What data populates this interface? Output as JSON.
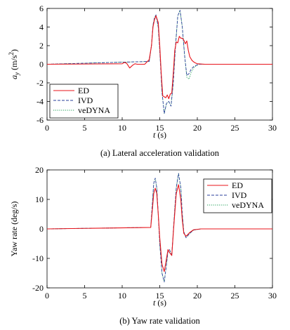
{
  "chart_data": [
    {
      "type": "line",
      "caption": "(a) Lateral acceleration validation",
      "xlabel": "t (s)",
      "ylabel": "a_y (m/s^2)",
      "xlim": [
        0,
        30
      ],
      "ylim": [
        -6,
        6
      ],
      "xticks": [
        0,
        5,
        10,
        15,
        20,
        25,
        30
      ],
      "yticks": [
        -6,
        -4,
        -2,
        0,
        2,
        4,
        6
      ],
      "grid": false,
      "legend_position": "bottom-left",
      "series": [
        {
          "name": "ED",
          "color": "#e8141b",
          "style": "solid",
          "x": [
            0,
            10,
            10.3,
            10.6,
            11,
            11.4,
            11.7,
            12,
            13,
            13.6,
            13.9,
            14.1,
            14.3,
            14.5,
            14.8,
            15.0,
            15.2,
            15.4,
            15.6,
            15.8,
            16.0,
            16.2,
            16.4,
            16.6,
            16.8,
            17.0,
            17.2,
            17.4,
            17.6,
            17.8,
            18.0,
            18.2,
            18.4,
            18.6,
            18.8,
            19.0,
            19.3,
            19.6,
            20,
            21,
            30
          ],
          "y": [
            0,
            0.05,
            0.2,
            0.1,
            -0.4,
            -0.1,
            0.05,
            0,
            0,
            0.5,
            2.0,
            4.0,
            4.8,
            5.2,
            4.5,
            2.0,
            -1.0,
            -3.4,
            -3.5,
            -3.6,
            -3.3,
            -3.7,
            -3.2,
            -3.1,
            -1.0,
            1.5,
            2.4,
            2.3,
            3.0,
            2.8,
            2.8,
            2.6,
            2.2,
            2.5,
            1.5,
            0.8,
            0.4,
            0.2,
            0.05,
            0,
            0
          ]
        },
        {
          "name": "IVD",
          "color": "#2a3f9b",
          "style": "dashed",
          "x": [
            0,
            13.6,
            13.9,
            14.1,
            14.3,
            14.5,
            14.8,
            15.0,
            15.3,
            15.6,
            15.9,
            16.2,
            16.5,
            16.8,
            17.1,
            17.4,
            17.7,
            18.0,
            18.3,
            18.6,
            18.9,
            19.2,
            19.6,
            20.2,
            21,
            30
          ],
          "y": [
            0,
            0.3,
            2.0,
            4.2,
            5.0,
            5.3,
            4.0,
            1.5,
            -3.0,
            -5.3,
            -4.2,
            -4.0,
            -4.5,
            -2.0,
            2.0,
            5.2,
            5.8,
            4.0,
            1.0,
            -1.2,
            -1.0,
            -0.5,
            -0.2,
            0,
            0,
            0
          ]
        },
        {
          "name": "veDYNA",
          "color": "#1f9d55",
          "style": "dotted",
          "x": [
            0,
            13.6,
            13.9,
            14.1,
            14.3,
            14.5,
            14.8,
            15.0,
            15.3,
            15.6,
            15.9,
            16.2,
            16.5,
            16.8,
            17.1,
            17.4,
            17.7,
            18.0,
            18.3,
            18.6,
            18.9,
            19.2,
            19.6,
            20.2,
            21,
            30
          ],
          "y": [
            0,
            0.3,
            2.0,
            4.2,
            5.0,
            5.3,
            4.0,
            1.5,
            -3.0,
            -5.3,
            -4.2,
            -4.0,
            -4.5,
            -2.0,
            2.0,
            5.2,
            5.8,
            4.0,
            1.0,
            -1.4,
            -1.6,
            -0.8,
            -0.3,
            0,
            0,
            0
          ]
        }
      ]
    },
    {
      "type": "line",
      "caption": "(b) Yaw rate validation",
      "xlabel": "t (s)",
      "ylabel": "Yaw rate (deg/s)",
      "xlim": [
        0,
        30
      ],
      "ylim": [
        -20,
        20
      ],
      "xticks": [
        0,
        5,
        10,
        15,
        20,
        25,
        30
      ],
      "yticks": [
        -20,
        -10,
        0,
        10,
        20
      ],
      "grid": false,
      "legend_position": "top-right",
      "series": [
        {
          "name": "ED",
          "color": "#e8141b",
          "style": "solid",
          "x": [
            0,
            13.8,
            14.0,
            14.2,
            14.4,
            14.6,
            14.8,
            15.0,
            15.3,
            15.6,
            15.9,
            16.1,
            16.3,
            16.6,
            16.9,
            17.2,
            17.5,
            17.8,
            18.0,
            18.2,
            18.5,
            19.0,
            19.5,
            20.5,
            30
          ],
          "y": [
            0,
            0.5,
            6.0,
            12.0,
            13.8,
            12.0,
            5.0,
            -3.0,
            -12.0,
            -14.5,
            -10.0,
            -7.0,
            -8.0,
            -9.0,
            2.0,
            12.0,
            15.0,
            10.0,
            3.0,
            -1.5,
            -2.5,
            -1.2,
            -0.3,
            0,
            0
          ]
        },
        {
          "name": "IVD",
          "color": "#2a3f9b",
          "style": "dashed",
          "x": [
            0,
            13.8,
            14.0,
            14.2,
            14.4,
            14.6,
            14.8,
            15.0,
            15.3,
            15.6,
            15.9,
            16.1,
            16.3,
            16.6,
            16.9,
            17.2,
            17.5,
            17.8,
            18.0,
            18.2,
            18.5,
            19.0,
            19.5,
            20.5,
            30
          ],
          "y": [
            0,
            0.5,
            8.0,
            15.5,
            17.2,
            14.0,
            5.0,
            -5.0,
            -15.0,
            -18.0,
            -12.0,
            -7.5,
            -7.0,
            -9.0,
            3.0,
            14.0,
            18.8,
            14.0,
            5.0,
            -1.0,
            -3.0,
            -1.5,
            -0.4,
            0,
            0
          ]
        },
        {
          "name": "veDYNA",
          "color": "#1f9d55",
          "style": "dotted",
          "x": [
            0,
            13.8,
            14.0,
            14.2,
            14.4,
            14.6,
            14.8,
            15.0,
            15.3,
            15.6,
            15.9,
            16.1,
            16.3,
            16.6,
            16.9,
            17.2,
            17.5,
            17.8,
            18.0,
            18.2,
            18.5,
            19.0,
            19.5,
            20.5,
            30
          ],
          "y": [
            0,
            0.5,
            8.0,
            15.5,
            17.2,
            14.0,
            5.0,
            -5.0,
            -15.0,
            -18.0,
            -12.0,
            -7.5,
            -7.0,
            -9.0,
            3.0,
            14.0,
            18.8,
            14.0,
            5.0,
            -1.0,
            -3.0,
            -1.5,
            -0.4,
            0,
            0
          ]
        }
      ]
    }
  ]
}
